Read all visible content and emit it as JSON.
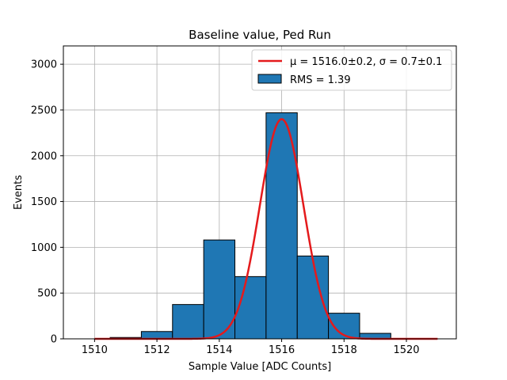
{
  "chart_data": {
    "type": "bar",
    "title": "Baseline value, Ped Run",
    "xlabel": "Sample Value [ADC Counts]",
    "ylabel": "Events",
    "xlim": [
      1509,
      1521.6
    ],
    "ylim": [
      0,
      3200
    ],
    "xticks": [
      1510,
      1512,
      1514,
      1516,
      1518,
      1520
    ],
    "yticks": [
      0,
      500,
      1000,
      1500,
      2000,
      2500,
      3000
    ],
    "grid": true,
    "legend_position": "top-right",
    "histogram": {
      "name": "RMS = 1.39",
      "color": "#1f77b4",
      "edge_color": "#000000",
      "bins": [
        {
          "left": 1509.5,
          "right": 1510.5,
          "count": 0
        },
        {
          "left": 1510.5,
          "right": 1511.5,
          "count": 15
        },
        {
          "left": 1511.5,
          "right": 1512.5,
          "count": 80
        },
        {
          "left": 1512.5,
          "right": 1513.5,
          "count": 375
        },
        {
          "left": 1513.5,
          "right": 1514.5,
          "count": 1080
        },
        {
          "left": 1514.5,
          "right": 1515.5,
          "count": 680
        },
        {
          "left": 1515.5,
          "right": 1516.5,
          "count": 2470
        },
        {
          "left": 1516.5,
          "right": 1517.5,
          "count": 905
        },
        {
          "left": 1517.5,
          "right": 1518.5,
          "count": 280
        },
        {
          "left": 1518.5,
          "right": 1519.5,
          "count": 60
        },
        {
          "left": 1519.5,
          "right": 1520.5,
          "count": 0
        }
      ]
    },
    "fit": {
      "name": "μ = 1516.0±0.2, σ = 0.7±0.1",
      "color": "#e41a1c",
      "function": "gaussian",
      "mu": 1516.0,
      "sigma": 0.7,
      "amplitude": 2400,
      "x_range": [
        1510,
        1521
      ]
    }
  }
}
